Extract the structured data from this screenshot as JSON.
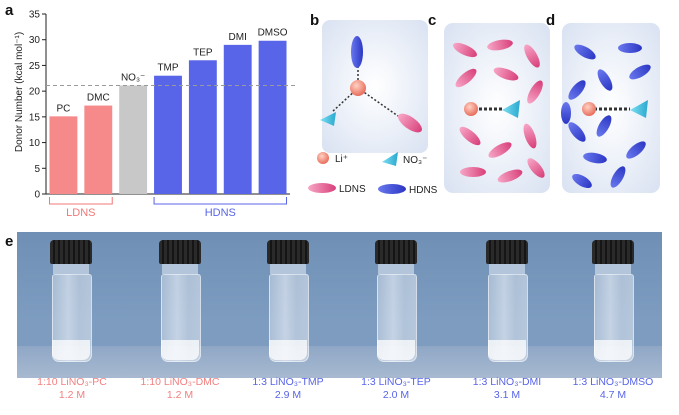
{
  "panels": {
    "a": "a",
    "b": "b",
    "c": "c",
    "d": "d",
    "e": "e"
  },
  "chart_data": {
    "type": "bar",
    "ylabel": "Donor Number (kcal mol⁻¹)",
    "ylim": [
      0,
      35
    ],
    "yticks": [
      0,
      5,
      10,
      15,
      20,
      25,
      30,
      35
    ],
    "reference_line": {
      "value": 21.1,
      "style": "dashed"
    },
    "categories": [
      "PC",
      "DMC",
      "NO₃⁻",
      "TMP",
      "TEP",
      "DMI",
      "DMSO"
    ],
    "values": [
      15.1,
      17.2,
      21.1,
      23.0,
      26.0,
      29.0,
      29.8
    ],
    "colors": [
      "#f68a8a",
      "#f68a8a",
      "#c8c8c8",
      "#5865e8",
      "#5865e8",
      "#5865e8",
      "#5865e8"
    ],
    "groups": [
      {
        "label": "LDNS",
        "color": "#f07878",
        "from": 0,
        "to": 1
      },
      {
        "label": "HDNS",
        "color": "#5865e8",
        "from": 3,
        "to": 6
      }
    ]
  },
  "legend": {
    "li_label": "Li⁺",
    "no3_label": "NO₃⁻",
    "ldns_label": "LDNS",
    "hdns_label": "HDNS"
  },
  "vials": [
    {
      "line1": "1:10 LiNO₃-PC",
      "line2": "1.2 M",
      "color": "#f08080"
    },
    {
      "line1": "1:10 LiNO₃-DMC",
      "line2": "1.2 M",
      "color": "#f08080"
    },
    {
      "line1": "1:3 LiNO₃-TMP",
      "line2": "2.9 M",
      "color": "#5865e8"
    },
    {
      "line1": "1:3 LiNO₃-TEP",
      "line2": "2.0 M",
      "color": "#5865e8"
    },
    {
      "line1": "1:3 LiNO₃-DMI",
      "line2": "3.1 M",
      "color": "#5865e8"
    },
    {
      "line1": "1:3 LiNO₃-DMSO",
      "line2": "4.7 M",
      "color": "#5865e8"
    }
  ]
}
